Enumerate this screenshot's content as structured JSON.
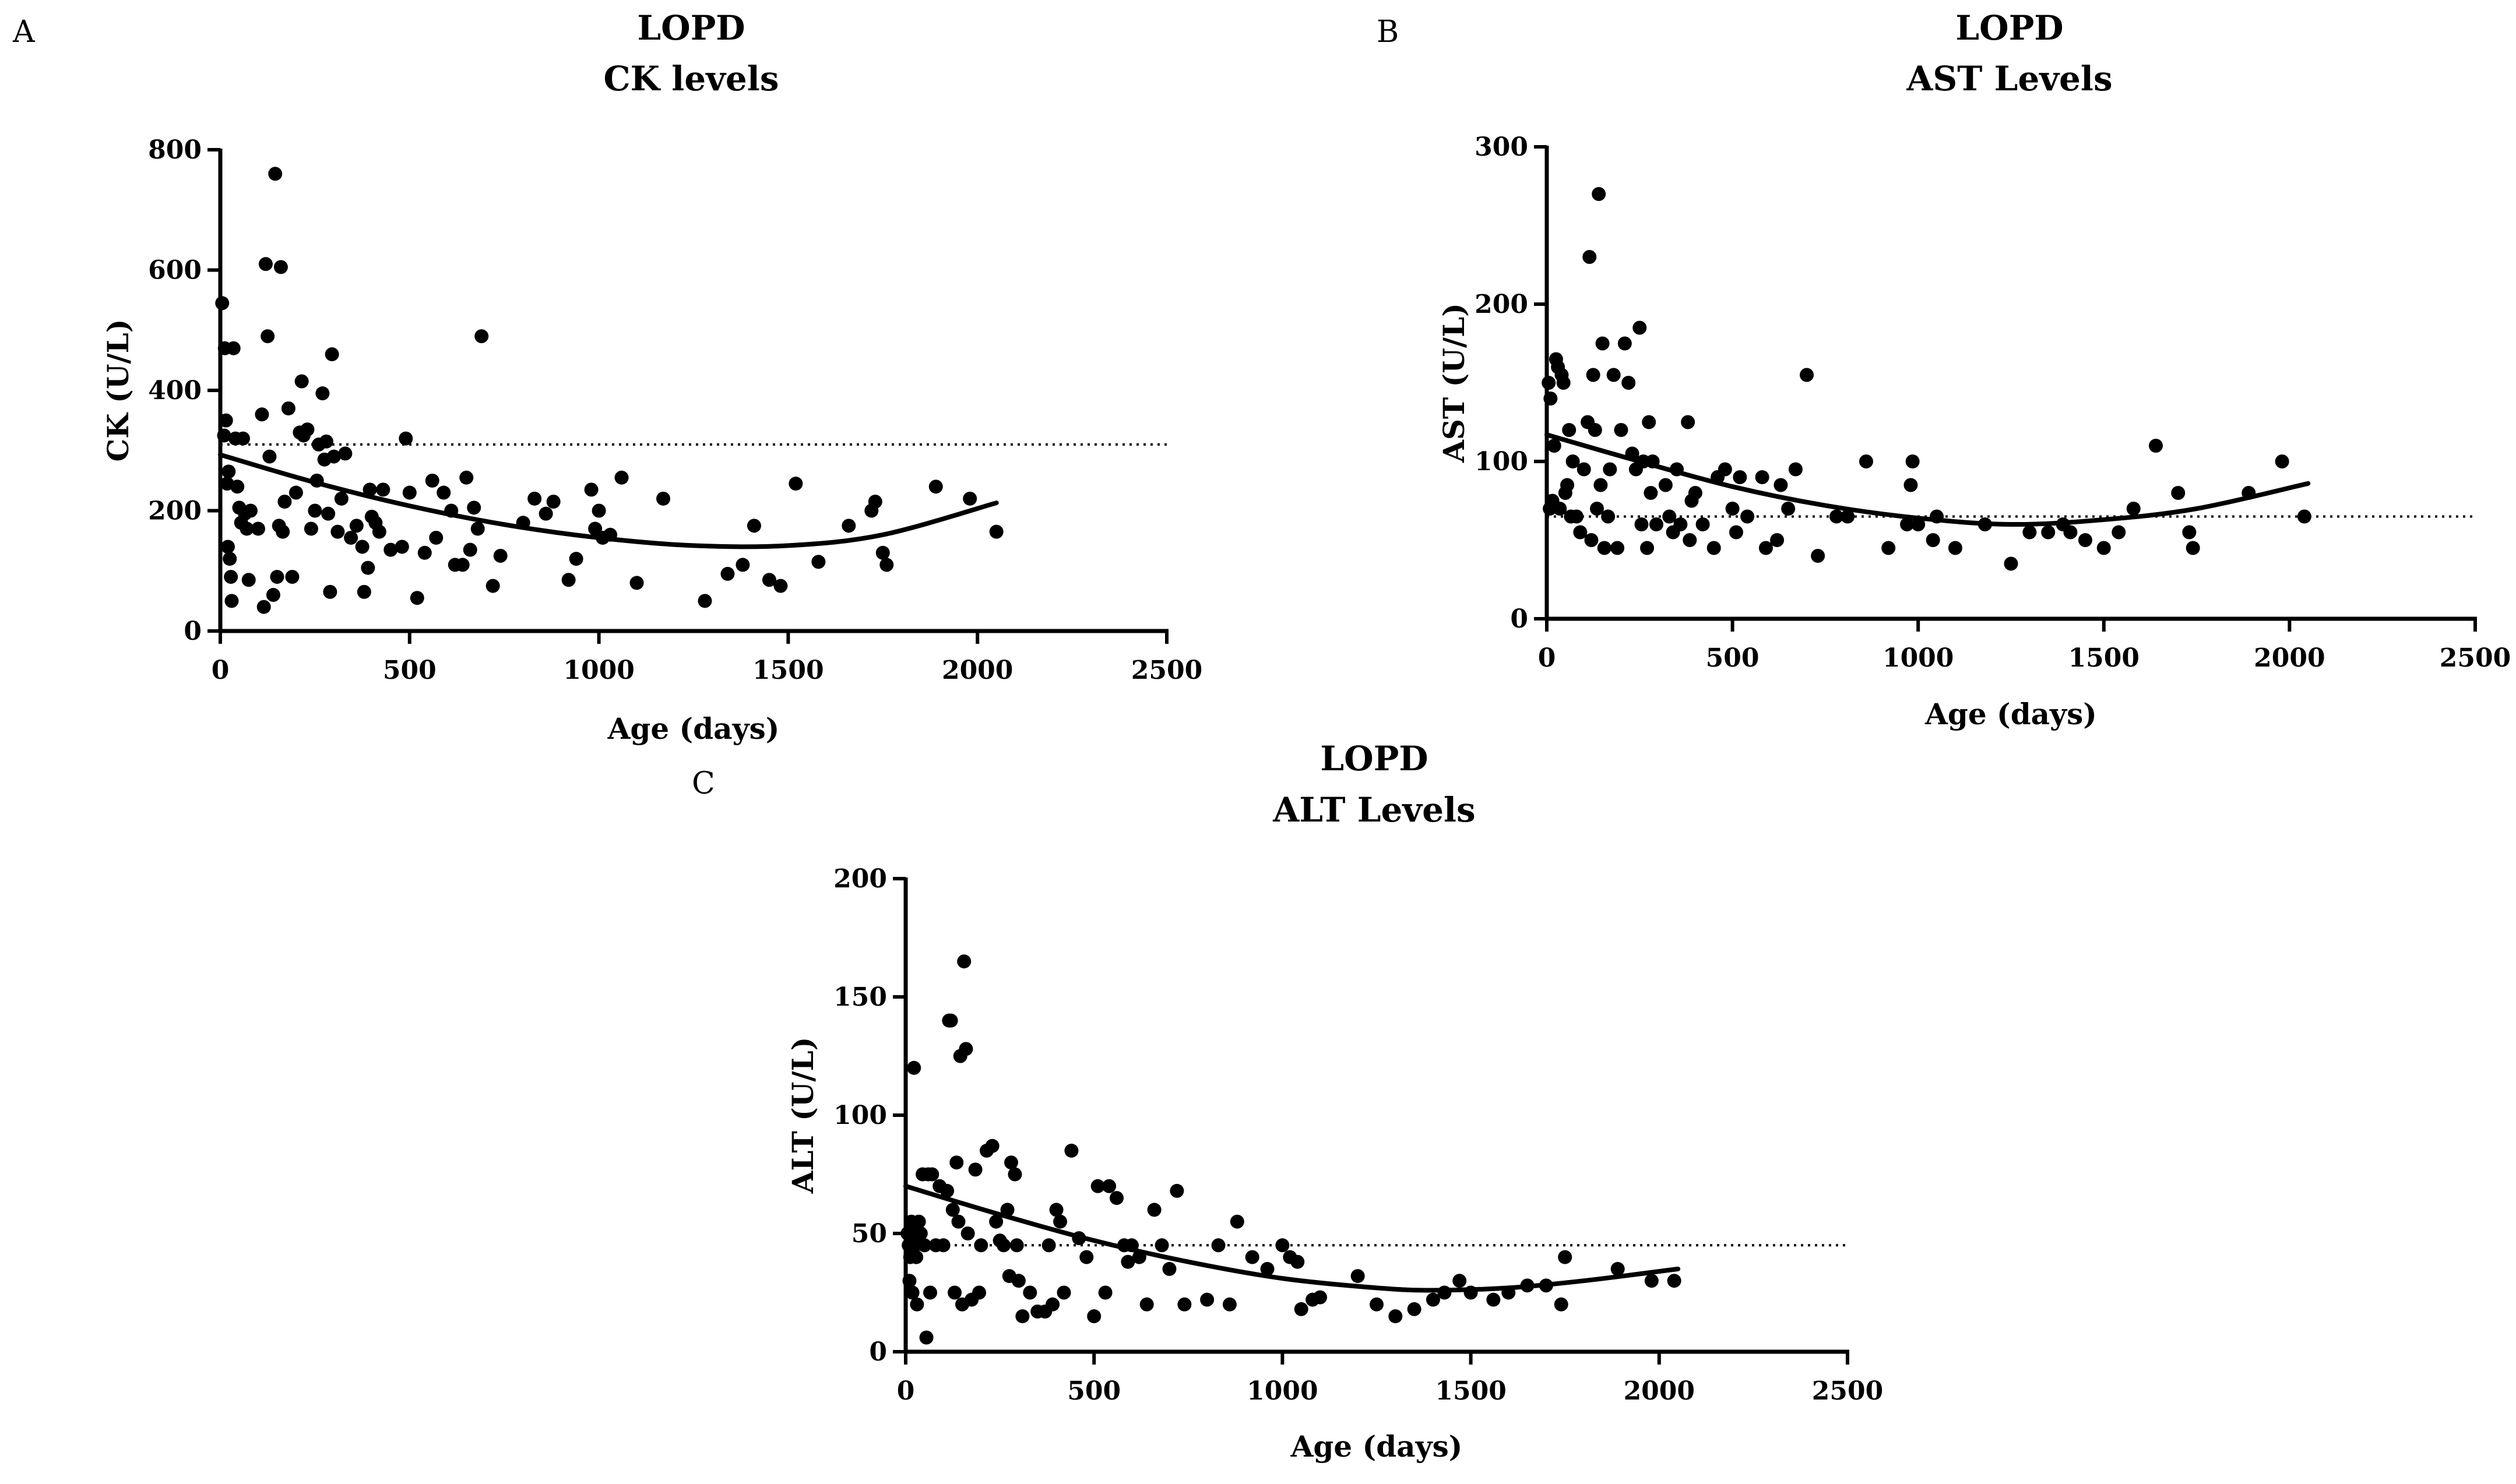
{
  "chart_data": [
    {
      "id": "A",
      "type": "scatter",
      "panel_label": "A",
      "title": "LOPD",
      "subtitle": "CK levels",
      "xlabel": "Age (days)",
      "ylabel": "CK (U/L)",
      "xlim": [
        0,
        2500
      ],
      "ylim": [
        0,
        800
      ],
      "xticks": [
        0,
        500,
        1000,
        1500,
        2000,
        2500
      ],
      "yticks": [
        0,
        200,
        400,
        600,
        800
      ],
      "reference_line": 310,
      "fit_curve": [
        [
          0,
          293
        ],
        [
          250,
          247
        ],
        [
          500,
          208
        ],
        [
          750,
          177
        ],
        [
          1000,
          155
        ],
        [
          1250,
          142
        ],
        [
          1500,
          142
        ],
        [
          1750,
          160
        ],
        [
          2050,
          213
        ]
      ],
      "points": [
        [
          5,
          545
        ],
        [
          10,
          325
        ],
        [
          12,
          470
        ],
        [
          15,
          350
        ],
        [
          18,
          245
        ],
        [
          20,
          140
        ],
        [
          22,
          265
        ],
        [
          25,
          120
        ],
        [
          28,
          90
        ],
        [
          30,
          50
        ],
        [
          35,
          470
        ],
        [
          40,
          320
        ],
        [
          45,
          240
        ],
        [
          50,
          205
        ],
        [
          55,
          180
        ],
        [
          60,
          320
        ],
        [
          65,
          195
        ],
        [
          70,
          170
        ],
        [
          75,
          85
        ],
        [
          80,
          200
        ],
        [
          100,
          170
        ],
        [
          110,
          360
        ],
        [
          115,
          40
        ],
        [
          120,
          610
        ],
        [
          125,
          490
        ],
        [
          130,
          290
        ],
        [
          140,
          60
        ],
        [
          145,
          760
        ],
        [
          150,
          90
        ],
        [
          155,
          175
        ],
        [
          160,
          605
        ],
        [
          165,
          165
        ],
        [
          170,
          215
        ],
        [
          180,
          370
        ],
        [
          190,
          90
        ],
        [
          200,
          230
        ],
        [
          210,
          330
        ],
        [
          215,
          415
        ],
        [
          220,
          325
        ],
        [
          230,
          335
        ],
        [
          240,
          170
        ],
        [
          250,
          200
        ],
        [
          255,
          250
        ],
        [
          260,
          310
        ],
        [
          270,
          395
        ],
        [
          275,
          285
        ],
        [
          280,
          315
        ],
        [
          285,
          195
        ],
        [
          290,
          65
        ],
        [
          295,
          460
        ],
        [
          300,
          290
        ],
        [
          310,
          165
        ],
        [
          320,
          220
        ],
        [
          330,
          295
        ],
        [
          345,
          155
        ],
        [
          360,
          175
        ],
        [
          375,
          140
        ],
        [
          380,
          65
        ],
        [
          390,
          105
        ],
        [
          395,
          235
        ],
        [
          400,
          190
        ],
        [
          410,
          180
        ],
        [
          420,
          165
        ],
        [
          430,
          235
        ],
        [
          450,
          135
        ],
        [
          480,
          140
        ],
        [
          490,
          320
        ],
        [
          500,
          230
        ],
        [
          520,
          55
        ],
        [
          540,
          130
        ],
        [
          560,
          250
        ],
        [
          570,
          155
        ],
        [
          590,
          230
        ],
        [
          610,
          200
        ],
        [
          620,
          110
        ],
        [
          640,
          110
        ],
        [
          650,
          255
        ],
        [
          660,
          135
        ],
        [
          670,
          205
        ],
        [
          680,
          170
        ],
        [
          690,
          490
        ],
        [
          720,
          75
        ],
        [
          740,
          125
        ],
        [
          800,
          180
        ],
        [
          830,
          220
        ],
        [
          860,
          195
        ],
        [
          880,
          215
        ],
        [
          920,
          85
        ],
        [
          940,
          120
        ],
        [
          980,
          235
        ],
        [
          990,
          170
        ],
        [
          1000,
          200
        ],
        [
          1010,
          155
        ],
        [
          1030,
          160
        ],
        [
          1060,
          255
        ],
        [
          1100,
          80
        ],
        [
          1170,
          220
        ],
        [
          1280,
          50
        ],
        [
          1340,
          95
        ],
        [
          1380,
          110
        ],
        [
          1410,
          175
        ],
        [
          1450,
          85
        ],
        [
          1480,
          75
        ],
        [
          1520,
          245
        ],
        [
          1580,
          115
        ],
        [
          1660,
          175
        ],
        [
          1720,
          200
        ],
        [
          1730,
          215
        ],
        [
          1750,
          130
        ],
        [
          1760,
          110
        ],
        [
          1890,
          240
        ],
        [
          1980,
          220
        ],
        [
          2050,
          165
        ]
      ]
    },
    {
      "id": "B",
      "type": "scatter",
      "panel_label": "B",
      "title": "LOPD",
      "subtitle": "AST Levels",
      "xlabel": "Age (days)",
      "ylabel": "AST (U/L)",
      "xlim": [
        0,
        2500
      ],
      "ylim": [
        0,
        300
      ],
      "xticks": [
        0,
        500,
        1000,
        1500,
        2000,
        2500
      ],
      "yticks": [
        0,
        100,
        200,
        300
      ],
      "reference_line": 65,
      "fit_curve": [
        [
          0,
          117
        ],
        [
          250,
          100
        ],
        [
          500,
          84
        ],
        [
          750,
          72
        ],
        [
          1000,
          64
        ],
        [
          1250,
          60
        ],
        [
          1500,
          63
        ],
        [
          1750,
          70
        ],
        [
          2050,
          86
        ]
      ],
      "points": [
        [
          5,
          150
        ],
        [
          8,
          70
        ],
        [
          10,
          140
        ],
        [
          15,
          75
        ],
        [
          20,
          110
        ],
        [
          25,
          165
        ],
        [
          30,
          160
        ],
        [
          35,
          70
        ],
        [
          40,
          155
        ],
        [
          45,
          150
        ],
        [
          50,
          80
        ],
        [
          55,
          85
        ],
        [
          60,
          120
        ],
        [
          65,
          65
        ],
        [
          70,
          100
        ],
        [
          80,
          65
        ],
        [
          90,
          55
        ],
        [
          100,
          95
        ],
        [
          110,
          125
        ],
        [
          115,
          230
        ],
        [
          120,
          50
        ],
        [
          125,
          155
        ],
        [
          130,
          120
        ],
        [
          135,
          70
        ],
        [
          140,
          270
        ],
        [
          145,
          85
        ],
        [
          150,
          175
        ],
        [
          155,
          45
        ],
        [
          165,
          65
        ],
        [
          170,
          95
        ],
        [
          180,
          155
        ],
        [
          190,
          45
        ],
        [
          200,
          120
        ],
        [
          210,
          175
        ],
        [
          220,
          150
        ],
        [
          230,
          105
        ],
        [
          240,
          95
        ],
        [
          250,
          185
        ],
        [
          255,
          60
        ],
        [
          260,
          100
        ],
        [
          270,
          45
        ],
        [
          275,
          125
        ],
        [
          280,
          80
        ],
        [
          285,
          100
        ],
        [
          295,
          60
        ],
        [
          320,
          85
        ],
        [
          330,
          65
        ],
        [
          340,
          55
        ],
        [
          350,
          95
        ],
        [
          360,
          60
        ],
        [
          380,
          125
        ],
        [
          385,
          50
        ],
        [
          390,
          75
        ],
        [
          400,
          80
        ],
        [
          420,
          60
        ],
        [
          450,
          45
        ],
        [
          460,
          90
        ],
        [
          480,
          95
        ],
        [
          500,
          70
        ],
        [
          510,
          55
        ],
        [
          520,
          90
        ],
        [
          540,
          65
        ],
        [
          580,
          90
        ],
        [
          590,
          45
        ],
        [
          620,
          50
        ],
        [
          630,
          85
        ],
        [
          650,
          70
        ],
        [
          670,
          95
        ],
        [
          700,
          155
        ],
        [
          730,
          40
        ],
        [
          780,
          65
        ],
        [
          810,
          65
        ],
        [
          860,
          100
        ],
        [
          920,
          45
        ],
        [
          970,
          60
        ],
        [
          980,
          85
        ],
        [
          985,
          100
        ],
        [
          1000,
          60
        ],
        [
          1040,
          50
        ],
        [
          1050,
          65
        ],
        [
          1100,
          45
        ],
        [
          1180,
          60
        ],
        [
          1250,
          35
        ],
        [
          1300,
          55
        ],
        [
          1350,
          55
        ],
        [
          1390,
          60
        ],
        [
          1410,
          55
        ],
        [
          1450,
          50
        ],
        [
          1500,
          45
        ],
        [
          1540,
          55
        ],
        [
          1580,
          70
        ],
        [
          1640,
          110
        ],
        [
          1700,
          80
        ],
        [
          1730,
          55
        ],
        [
          1740,
          45
        ],
        [
          1890,
          80
        ],
        [
          1980,
          100
        ],
        [
          2040,
          65
        ]
      ]
    },
    {
      "id": "C",
      "type": "scatter",
      "panel_label": "C",
      "title": "LOPD",
      "subtitle": "ALT Levels",
      "xlabel": "Age (days)",
      "ylabel": "ALT (U/L)",
      "xlim": [
        0,
        2500
      ],
      "ylim": [
        0,
        200
      ],
      "xticks": [
        0,
        500,
        1000,
        1500,
        2000,
        2500
      ],
      "yticks": [
        0,
        50,
        100,
        150,
        200
      ],
      "reference_line": 45,
      "fit_curve": [
        [
          0,
          70
        ],
        [
          250,
          58
        ],
        [
          500,
          47
        ],
        [
          750,
          38
        ],
        [
          1000,
          31
        ],
        [
          1250,
          27
        ],
        [
          1400,
          26
        ],
        [
          1600,
          27
        ],
        [
          1800,
          30
        ],
        [
          2050,
          35
        ]
      ],
      "points": [
        [
          5,
          50
        ],
        [
          8,
          45
        ],
        [
          10,
          30
        ],
        [
          12,
          40
        ],
        [
          15,
          55
        ],
        [
          18,
          25
        ],
        [
          20,
          50
        ],
        [
          22,
          120
        ],
        [
          25,
          45
        ],
        [
          28,
          40
        ],
        [
          30,
          20
        ],
        [
          35,
          55
        ],
        [
          40,
          50
        ],
        [
          45,
          75
        ],
        [
          50,
          45
        ],
        [
          55,
          6
        ],
        [
          60,
          75
        ],
        [
          65,
          25
        ],
        [
          70,
          75
        ],
        [
          80,
          45
        ],
        [
          90,
          70
        ],
        [
          100,
          45
        ],
        [
          110,
          68
        ],
        [
          115,
          140
        ],
        [
          120,
          140
        ],
        [
          125,
          60
        ],
        [
          130,
          25
        ],
        [
          135,
          80
        ],
        [
          140,
          55
        ],
        [
          145,
          125
        ],
        [
          150,
          20
        ],
        [
          155,
          165
        ],
        [
          160,
          128
        ],
        [
          165,
          50
        ],
        [
          175,
          22
        ],
        [
          185,
          77
        ],
        [
          195,
          25
        ],
        [
          200,
          45
        ],
        [
          215,
          85
        ],
        [
          230,
          87
        ],
        [
          240,
          55
        ],
        [
          250,
          47
        ],
        [
          260,
          45
        ],
        [
          270,
          60
        ],
        [
          275,
          32
        ],
        [
          280,
          80
        ],
        [
          290,
          75
        ],
        [
          295,
          45
        ],
        [
          300,
          30
        ],
        [
          310,
          15
        ],
        [
          330,
          25
        ],
        [
          350,
          17
        ],
        [
          370,
          17
        ],
        [
          380,
          45
        ],
        [
          390,
          20
        ],
        [
          400,
          60
        ],
        [
          410,
          55
        ],
        [
          420,
          25
        ],
        [
          440,
          85
        ],
        [
          460,
          48
        ],
        [
          480,
          40
        ],
        [
          500,
          15
        ],
        [
          510,
          70
        ],
        [
          530,
          25
        ],
        [
          540,
          70
        ],
        [
          560,
          65
        ],
        [
          580,
          45
        ],
        [
          590,
          38
        ],
        [
          600,
          45
        ],
        [
          620,
          40
        ],
        [
          640,
          20
        ],
        [
          660,
          60
        ],
        [
          680,
          45
        ],
        [
          700,
          35
        ],
        [
          720,
          68
        ],
        [
          740,
          20
        ],
        [
          800,
          22
        ],
        [
          830,
          45
        ],
        [
          860,
          20
        ],
        [
          880,
          55
        ],
        [
          920,
          40
        ],
        [
          960,
          35
        ],
        [
          1000,
          45
        ],
        [
          1020,
          40
        ],
        [
          1040,
          38
        ],
        [
          1050,
          18
        ],
        [
          1080,
          22
        ],
        [
          1100,
          23
        ],
        [
          1200,
          32
        ],
        [
          1250,
          20
        ],
        [
          1300,
          15
        ],
        [
          1350,
          18
        ],
        [
          1400,
          22
        ],
        [
          1430,
          25
        ],
        [
          1470,
          30
        ],
        [
          1500,
          25
        ],
        [
          1560,
          22
        ],
        [
          1600,
          25
        ],
        [
          1650,
          28
        ],
        [
          1700,
          28
        ],
        [
          1740,
          20
        ],
        [
          1750,
          40
        ],
        [
          1890,
          35
        ],
        [
          1980,
          30
        ],
        [
          2040,
          30
        ]
      ]
    }
  ]
}
